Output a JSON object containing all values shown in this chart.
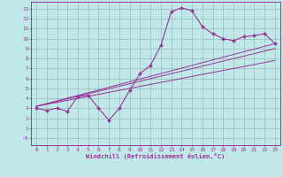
{
  "xlabel": "Windchill (Refroidissement éolien,°C)",
  "bg_color": "#c0e8e8",
  "line_color": "#993399",
  "grid_color": "#99bbbb",
  "x_ticks": [
    0,
    1,
    2,
    3,
    4,
    5,
    6,
    7,
    8,
    9,
    10,
    11,
    12,
    13,
    14,
    15,
    16,
    17,
    18,
    19,
    20,
    21,
    22,
    23
  ],
  "y_ticks": [
    0,
    1,
    2,
    3,
    4,
    5,
    6,
    7,
    8,
    9,
    10,
    11,
    12,
    13
  ],
  "ylim": [
    -0.7,
    13.7
  ],
  "xlim": [
    -0.5,
    23.5
  ],
  "main_line_x": [
    0,
    1,
    2,
    3,
    4,
    5,
    6,
    7,
    8,
    9,
    10,
    11,
    12,
    13,
    14,
    15,
    16,
    17,
    18,
    19,
    20,
    21,
    22,
    23
  ],
  "main_line_y": [
    3.0,
    2.8,
    3.0,
    2.7,
    4.2,
    4.3,
    3.0,
    1.8,
    3.0,
    4.8,
    6.5,
    7.3,
    9.3,
    12.7,
    13.1,
    12.8,
    11.2,
    10.5,
    10.0,
    9.8,
    10.2,
    10.3,
    10.5,
    9.5
  ],
  "line1_x": [
    0,
    23
  ],
  "line1_y": [
    3.2,
    9.5
  ],
  "line2_x": [
    0,
    23
  ],
  "line2_y": [
    3.2,
    9.0
  ],
  "line3_x": [
    0,
    23
  ],
  "line3_y": [
    3.2,
    7.8
  ]
}
